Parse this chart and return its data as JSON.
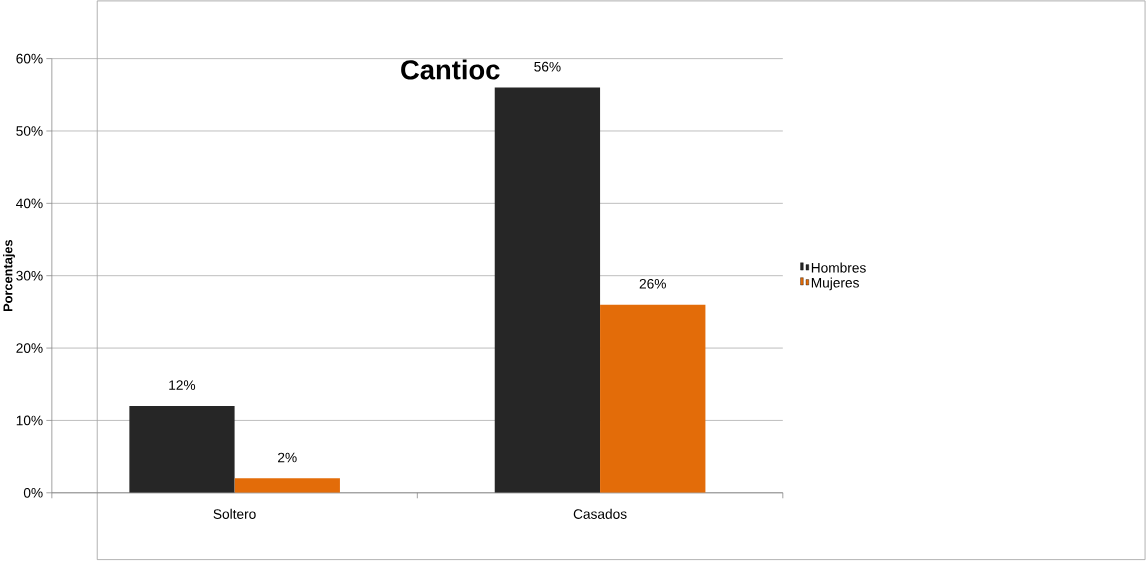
{
  "chart_data": {
    "type": "bar",
    "title": "Cantioc",
    "ylabel": "Porcentajes",
    "categories": [
      "Soltero",
      "Casados"
    ],
    "series": [
      {
        "name": "Hombres",
        "color": "#262626",
        "values": [
          12,
          56
        ],
        "value_labels": [
          "12%",
          "56%"
        ]
      },
      {
        "name": "Mujeres",
        "color": "#e36c09",
        "values": [
          2,
          26
        ],
        "value_labels": [
          "2%",
          "26%"
        ]
      }
    ],
    "ylim": [
      0,
      60
    ],
    "yticks": [
      {
        "value": 0,
        "label": "0%"
      },
      {
        "value": 10,
        "label": "10%"
      },
      {
        "value": 20,
        "label": "20%"
      },
      {
        "value": 30,
        "label": "30%"
      },
      {
        "value": 40,
        "label": "40%"
      },
      {
        "value": 50,
        "label": "50%"
      },
      {
        "value": 60,
        "label": "60%"
      }
    ],
    "grid": "y",
    "legend": "right"
  }
}
